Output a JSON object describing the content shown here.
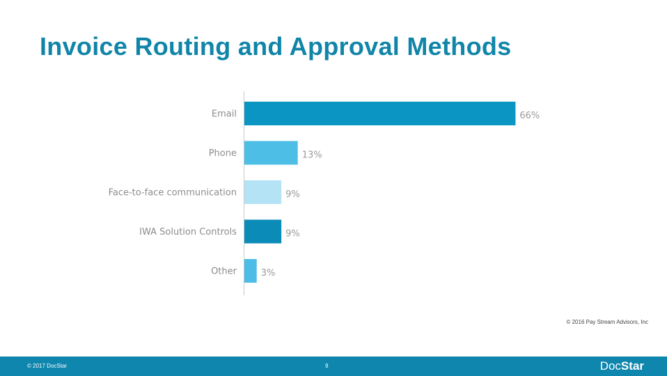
{
  "slide": {
    "title": "Invoice Routing and Approval Methods",
    "source": "© 2016 Pay Stream Advisors, Inc"
  },
  "footer": {
    "copyright": "© 2017 DocStar",
    "page_number": "9",
    "logo_part1": "Doc",
    "logo_part2": "Star"
  },
  "chart_data": {
    "type": "bar",
    "orientation": "horizontal",
    "categories": [
      "Email",
      "Phone",
      "Face-to-face communication",
      "IWA Solution Controls",
      "Other"
    ],
    "values": [
      66,
      13,
      9,
      9,
      3
    ],
    "value_labels": [
      "66%",
      "13%",
      "9%",
      "9%",
      "3%"
    ],
    "colors": [
      "#0a95c2",
      "#4dbfe7",
      "#b5e3f6",
      "#0b8bb7",
      "#4cbde6"
    ],
    "xlim": [
      0,
      70
    ],
    "unit": "%",
    "grid": false
  }
}
